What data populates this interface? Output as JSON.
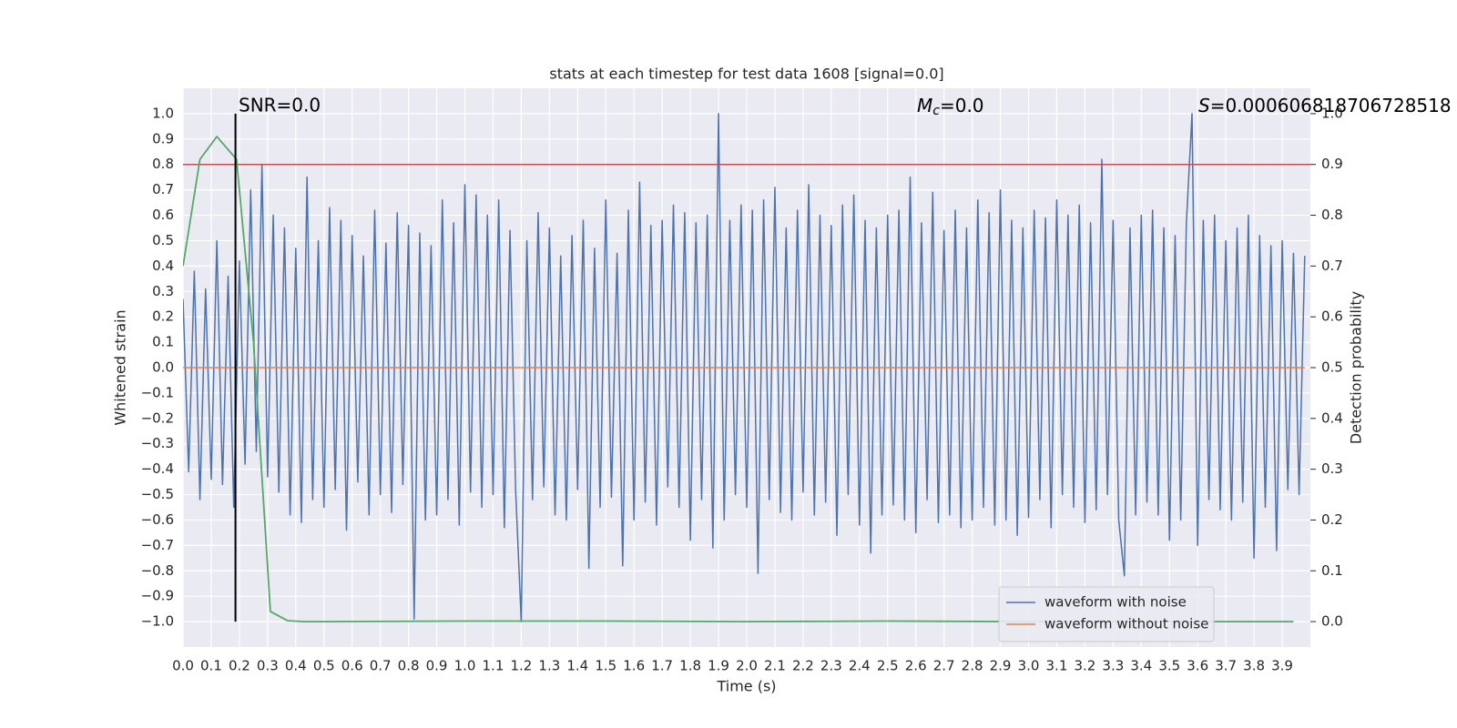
{
  "chart_data": {
    "type": "line",
    "title": "stats at each timestep for test data 1608 [signal=0.0]",
    "x_label": "Time (s)",
    "y_label": "Whitened strain",
    "y2_label": "Detection probability",
    "annotations": [
      {
        "text": "SNR=0.0"
      },
      {
        "symbol": "M",
        "subscript": "c",
        "text": "=0.0"
      },
      {
        "symbol": "S",
        "text": "=0.000606818706728518"
      }
    ],
    "xlim": [
      0,
      4.0
    ],
    "ylim": [
      -1.1,
      1.1
    ],
    "y2lim": [
      -0.05,
      1.05
    ],
    "grid": true,
    "legend": "lower right",
    "xticks": [
      {
        "value": 0,
        "label": "0.0"
      },
      0.1,
      0.2,
      0.3,
      0.4,
      0.5,
      0.6,
      0.7,
      0.8,
      0.9,
      {
        "value": 1,
        "label": "1.0"
      },
      1.1,
      1.2,
      1.3,
      1.4,
      1.5,
      1.6,
      1.7,
      1.8,
      1.9,
      {
        "value": 2,
        "label": "2.0"
      },
      2.1,
      2.2,
      2.3,
      2.4,
      2.5,
      2.6,
      2.7,
      2.8,
      2.9,
      {
        "value": 3,
        "label": "3.0"
      },
      3.1,
      3.2,
      3.3,
      3.4,
      3.5,
      3.6,
      3.7,
      3.8,
      3.9
    ],
    "yticks": [
      {
        "value": -1,
        "label": "−1.0"
      },
      {
        "value": -0.9,
        "label": "−0.9"
      },
      {
        "value": -0.8,
        "label": "−0.8"
      },
      {
        "value": -0.7,
        "label": "−0.7"
      },
      {
        "value": -0.6,
        "label": "−0.6"
      },
      {
        "value": -0.5,
        "label": "−0.5"
      },
      {
        "value": -0.4,
        "label": "−0.4"
      },
      {
        "value": -0.3,
        "label": "−0.3"
      },
      {
        "value": -0.2,
        "label": "−0.2"
      },
      {
        "value": -0.1,
        "label": "−0.1"
      },
      {
        "value": 0,
        "label": "0.0"
      },
      0.1,
      0.2,
      0.3,
      0.4,
      0.5,
      0.6,
      0.7,
      0.8,
      0.9,
      {
        "value": 1,
        "label": "1.0"
      }
    ],
    "y2ticks": [
      {
        "value": 0,
        "label": "0.0"
      },
      0.1,
      0.2,
      0.3,
      0.4,
      0.5,
      0.6,
      0.7,
      0.8,
      0.9,
      {
        "value": 1,
        "label": "1.0"
      }
    ],
    "series": [
      {
        "name": "waveform with noise",
        "color": "#4c72b0",
        "x": [
          0,
          0.02,
          0.04,
          0.06,
          0.08,
          0.1,
          0.12,
          0.14,
          0.16,
          0.18,
          0.2,
          0.22,
          0.24,
          0.26,
          0.28,
          0.3,
          0.32,
          0.34,
          0.36,
          0.38,
          0.4,
          0.42,
          0.44,
          0.46,
          0.48,
          0.5,
          0.52,
          0.54,
          0.56,
          0.58,
          0.6,
          0.62,
          0.64,
          0.66,
          0.68,
          0.7,
          0.72,
          0.74,
          0.76,
          0.78,
          0.8,
          0.82,
          0.84,
          0.86,
          0.88,
          0.9,
          0.92,
          0.94,
          0.96,
          0.98,
          1,
          1.02,
          1.04,
          1.06,
          1.08,
          1.1,
          1.12,
          1.14,
          1.16,
          1.18,
          1.2,
          1.22,
          1.24,
          1.26,
          1.28,
          1.3,
          1.32,
          1.34,
          1.36,
          1.38,
          1.4,
          1.42,
          1.44,
          1.46,
          1.48,
          1.5,
          1.52,
          1.54,
          1.56,
          1.58,
          1.6,
          1.62,
          1.64,
          1.66,
          1.68,
          1.7,
          1.72,
          1.74,
          1.76,
          1.78,
          1.8,
          1.82,
          1.84,
          1.86,
          1.88,
          1.9,
          1.92,
          1.94,
          1.96,
          1.98,
          2,
          2.02,
          2.04,
          2.06,
          2.08,
          2.1,
          2.12,
          2.14,
          2.16,
          2.18,
          2.2,
          2.22,
          2.24,
          2.26,
          2.28,
          2.3,
          2.32,
          2.34,
          2.36,
          2.38,
          2.4,
          2.42,
          2.44,
          2.46,
          2.48,
          2.5,
          2.52,
          2.54,
          2.56,
          2.58,
          2.6,
          2.62,
          2.64,
          2.66,
          2.68,
          2.7,
          2.72,
          2.74,
          2.76,
          2.78,
          2.8,
          2.82,
          2.84,
          2.86,
          2.88,
          2.9,
          2.92,
          2.94,
          2.96,
          2.98,
          3,
          3.02,
          3.04,
          3.06,
          3.08,
          3.1,
          3.12,
          3.14,
          3.16,
          3.18,
          3.2,
          3.22,
          3.24,
          3.26,
          3.28,
          3.3,
          3.32,
          3.34,
          3.36,
          3.38,
          3.4,
          3.42,
          3.44,
          3.46,
          3.48,
          3.5,
          3.52,
          3.54,
          3.56,
          3.58,
          3.6,
          3.62,
          3.64,
          3.66,
          3.68,
          3.7,
          3.72,
          3.74,
          3.76,
          3.78,
          3.8,
          3.82,
          3.84,
          3.86,
          3.88,
          3.9,
          3.92,
          3.94,
          3.96,
          3.98
        ],
        "values": [
          0.27,
          -0.41,
          0.38,
          -0.52,
          0.31,
          -0.44,
          0.5,
          -0.46,
          0.36,
          -0.55,
          0.42,
          -0.38,
          0.7,
          -0.33,
          0.8,
          -0.43,
          0.6,
          -0.49,
          0.55,
          -0.58,
          0.47,
          -0.61,
          0.75,
          -0.52,
          0.5,
          -0.55,
          0.63,
          -0.48,
          0.58,
          -0.64,
          0.52,
          -0.45,
          0.44,
          -0.58,
          0.62,
          -0.5,
          0.49,
          -0.57,
          0.61,
          -0.46,
          0.56,
          -0.99,
          0.53,
          -0.6,
          0.48,
          -0.58,
          0.66,
          -0.52,
          0.57,
          -0.62,
          0.72,
          -0.49,
          0.68,
          -0.55,
          0.6,
          -0.5,
          0.66,
          -0.63,
          0.54,
          -0.48,
          -1.0,
          0.5,
          -0.52,
          0.61,
          -0.47,
          0.55,
          -0.58,
          0.44,
          -0.6,
          0.52,
          -0.48,
          0.58,
          -0.79,
          0.47,
          -0.55,
          0.66,
          -0.51,
          0.45,
          -0.78,
          0.62,
          -0.6,
          0.73,
          -0.53,
          0.56,
          -0.62,
          0.58,
          -0.47,
          0.64,
          -0.55,
          0.61,
          -0.68,
          0.57,
          -0.52,
          0.6,
          -0.71,
          1.0,
          -0.6,
          0.58,
          -0.5,
          0.64,
          -0.55,
          0.62,
          -0.81,
          0.66,
          -0.52,
          0.71,
          -0.57,
          0.55,
          -0.6,
          0.62,
          -0.49,
          0.72,
          -0.58,
          0.6,
          -0.53,
          0.56,
          -0.66,
          0.64,
          -0.5,
          0.68,
          -0.62,
          0.58,
          -0.73,
          0.55,
          -0.58,
          0.6,
          -0.54,
          0.62,
          -0.6,
          0.75,
          -0.65,
          0.57,
          -0.52,
          0.69,
          -0.61,
          0.54,
          -0.58,
          0.62,
          -0.63,
          0.55,
          -0.6,
          0.66,
          -0.55,
          0.61,
          -0.62,
          0.7,
          -0.6,
          0.58,
          -0.66,
          0.55,
          -0.59,
          0.62,
          -0.52,
          0.59,
          -0.63,
          0.66,
          -0.5,
          0.6,
          -0.55,
          0.64,
          -0.61,
          0.57,
          -0.56,
          0.82,
          -0.5,
          0.58,
          -0.6,
          -0.82,
          0.55,
          -0.58,
          0.6,
          -0.53,
          0.62,
          -0.58,
          0.55,
          -0.68,
          0.52,
          -0.6,
          0.57,
          1.0,
          -0.7,
          0.58,
          -0.52,
          0.6,
          -0.56,
          0.5,
          -0.6,
          0.55,
          -0.53,
          0.6,
          -0.75,
          0.52,
          -0.55,
          0.48,
          -0.72,
          0.5,
          -0.48,
          0.45,
          -0.5,
          0.44
        ]
      },
      {
        "name": "waveform without noise",
        "color": "#dd8452",
        "x": [
          0,
          3.98
        ],
        "values": [
          0,
          0
        ]
      }
    ],
    "probability": {
      "color": "#55a868",
      "axis": "y2",
      "x": [
        0,
        0.06,
        0.12,
        0.19,
        0.25,
        0.31,
        0.37,
        0.43,
        0.5,
        1.0,
        1.5,
        2.0,
        2.5,
        3.0,
        3.5,
        3.94
      ],
      "values": [
        0.7,
        0.91,
        0.955,
        0.91,
        0.55,
        0.02,
        0.002,
        0.0,
        0.0,
        0.001,
        0.001,
        0.0,
        0.001,
        0.0,
        0.0,
        0.0
      ]
    },
    "threshold": {
      "value": 0.9,
      "axis": "y2",
      "color": "#c44e52"
    },
    "marker": {
      "x": 0.186,
      "ymin": -1,
      "ymax": 1,
      "color": "#000000"
    }
  }
}
